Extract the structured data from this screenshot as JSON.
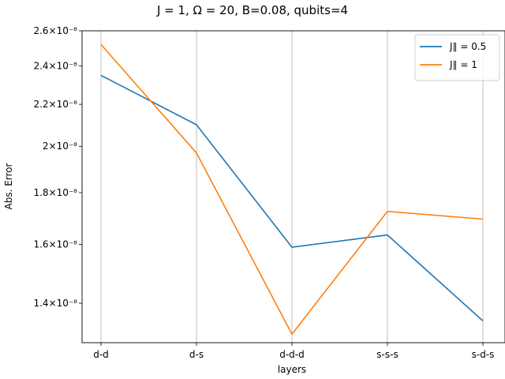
{
  "chart_data": {
    "type": "line",
    "title": "J = 1, Ω = 20, B=0.08, qubits=4",
    "xlabel": "layers",
    "ylabel": "Abs. Error",
    "yscale": "log",
    "ylim": [
      1.28e-08,
      2.6e-08
    ],
    "categories": [
      "d-d",
      "d-s",
      "d-d-d",
      "s-s-s",
      "s-d-s"
    ],
    "yticks": [
      {
        "value": 1.4e-08,
        "label": "1.4×10⁻⁸"
      },
      {
        "value": 1.6e-08,
        "label": "1.6×10⁻⁸"
      },
      {
        "value": 1.8e-08,
        "label": "1.8×10⁻⁸"
      },
      {
        "value": 2e-08,
        "label": "2×10⁻⁸"
      },
      {
        "value": 2.2e-08,
        "label": "2.2×10⁻⁸"
      },
      {
        "value": 2.4e-08,
        "label": "2.4×10⁻⁸"
      },
      {
        "value": 2.6e-08,
        "label": "2.6×10⁻⁸"
      }
    ],
    "grid": "x-only",
    "legend_position": "top-right",
    "series": [
      {
        "name": "J∥ = 0.5",
        "color": "#1f77b4",
        "values": [
          2.35e-08,
          2.1e-08,
          1.59e-08,
          1.635e-08,
          1.345e-08
        ]
      },
      {
        "name": "J∥ = 1",
        "color": "#ff7f0e",
        "values": [
          2.52e-08,
          1.97e-08,
          1.305e-08,
          1.725e-08,
          1.695e-08
        ]
      }
    ]
  }
}
